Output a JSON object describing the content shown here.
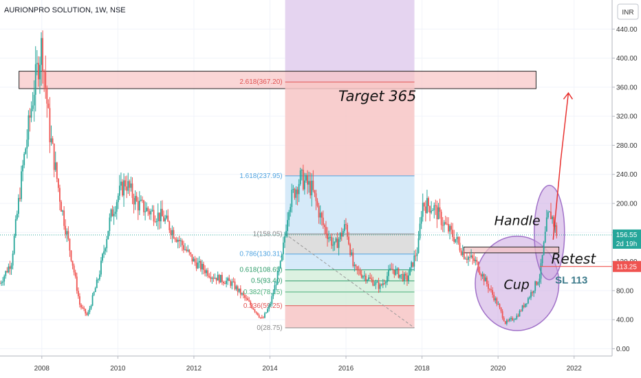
{
  "title": "AURIONPRO SOLUTION, 1W, NSE",
  "currency": "INR",
  "price_tags": {
    "last_price": "156.55",
    "countdown": "2d 19h",
    "stop_loss": "113.25"
  },
  "annotations": {
    "target": "Target 365",
    "handle": "Handle",
    "cup": "Cup",
    "retest": "Retest",
    "stop_loss": "SL 113"
  },
  "colors": {
    "bull": "#26a69a",
    "bear": "#ef5350",
    "fib_red": "#f7c5c5",
    "fib_blue": "#cfe6f8",
    "fib_gray": "#d8d8d8",
    "fib_green": "#d6eedc",
    "purple": "#e5d4f0",
    "last_price_tag": "#26a69a",
    "stop_loss_tag": "#ef5350",
    "target_arrow": "#e8302e"
  },
  "chart_data": {
    "type": "candlestick",
    "symbol": "AURIONPRO SOLUTION",
    "timeframe": "1W",
    "exchange": "NSE",
    "x_ticks": [
      "2008",
      "2010",
      "2012",
      "2014",
      "2016",
      "2018",
      "2020",
      "2022"
    ],
    "x_range": [
      2006.9,
      2023.0
    ],
    "y_ticks": [
      "0.00",
      "40.00",
      "80.00",
      "120.00",
      "160.00",
      "200.00",
      "240.00",
      "280.00",
      "320.00",
      "360.00",
      "400.00",
      "440.00"
    ],
    "y_range": [
      -10,
      480
    ],
    "price_path": [
      [
        2006.9,
        90
      ],
      [
        2007.2,
        120
      ],
      [
        2007.5,
        250
      ],
      [
        2007.8,
        360
      ],
      [
        2008.0,
        420
      ],
      [
        2008.2,
        300
      ],
      [
        2008.5,
        200
      ],
      [
        2008.8,
        120
      ],
      [
        2009.0,
        60
      ],
      [
        2009.2,
        45
      ],
      [
        2009.5,
        100
      ],
      [
        2009.8,
        180
      ],
      [
        2010.0,
        210
      ],
      [
        2010.2,
        230
      ],
      [
        2010.5,
        200
      ],
      [
        2010.8,
        190
      ],
      [
        2011.2,
        180
      ],
      [
        2011.6,
        150
      ],
      [
        2012.0,
        120
      ],
      [
        2012.5,
        100
      ],
      [
        2013.0,
        90
      ],
      [
        2013.5,
        60
      ],
      [
        2013.8,
        40
      ],
      [
        2014.0,
        60
      ],
      [
        2014.3,
        120
      ],
      [
        2014.5,
        200
      ],
      [
        2014.8,
        235
      ],
      [
        2015.1,
        220
      ],
      [
        2015.4,
        170
      ],
      [
        2015.7,
        140
      ],
      [
        2016.0,
        170
      ],
      [
        2016.2,
        110
      ],
      [
        2016.5,
        100
      ],
      [
        2016.9,
        85
      ],
      [
        2017.2,
        110
      ],
      [
        2017.6,
        95
      ],
      [
        2017.9,
        140
      ],
      [
        2018.0,
        200
      ],
      [
        2018.3,
        195
      ],
      [
        2018.6,
        170
      ],
      [
        2018.9,
        150
      ],
      [
        2019.1,
        130
      ],
      [
        2019.4,
        120
      ],
      [
        2019.7,
        90
      ],
      [
        2020.0,
        60
      ],
      [
        2020.2,
        35
      ],
      [
        2020.5,
        45
      ],
      [
        2020.8,
        70
      ],
      [
        2021.1,
        100
      ],
      [
        2021.3,
        180
      ],
      [
        2021.4,
        185
      ],
      [
        2021.55,
        157
      ]
    ],
    "fib_levels": [
      {
        "ratio": "2.618",
        "price": 367.2
      },
      {
        "ratio": "1.618",
        "price": 237.95
      },
      {
        "ratio": "1",
        "price": 158.05
      },
      {
        "ratio": "0.786",
        "price": 130.31
      },
      {
        "ratio": "0.618",
        "price": 108.65
      },
      {
        "ratio": "0.5",
        "price": 93.4
      },
      {
        "ratio": "0.382",
        "price": 78.15
      },
      {
        "ratio": "0.236",
        "price": 59.25
      },
      {
        "ratio": "0",
        "price": 28.75
      }
    ],
    "fib_labels": [
      "2.618(367.20)",
      "1.618(237.95)",
      "1(158.05)",
      "0.786(130.31)",
      "0.618(108.65)",
      "0.5(93.40)",
      "0.382(78.15)",
      "0.236(59.25)",
      "0(28.75)"
    ],
    "fib_time_range": [
      2014.4,
      2017.8
    ],
    "purple_zone_time_range": [
      2014.4,
      2017.8
    ],
    "target_zone": {
      "from_time": 2007.4,
      "to_time": 2021.0,
      "price_low": 358,
      "price_high": 382
    },
    "handle_zone": {
      "from_time": 2019.1,
      "to_time": 2021.6,
      "price_low": 132,
      "price_high": 140
    },
    "stop_loss_price": 113.25,
    "last_price": 156.55,
    "target_price": 365
  }
}
